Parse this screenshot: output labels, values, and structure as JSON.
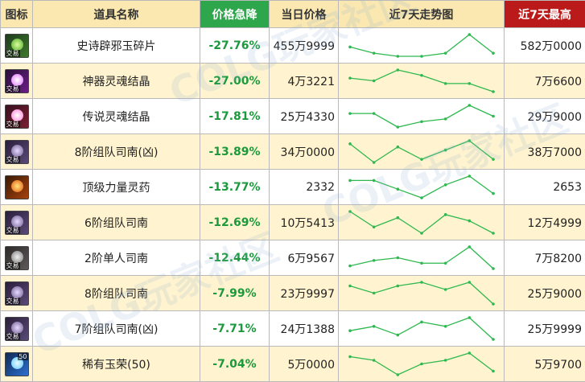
{
  "headers": {
    "icon": "图标",
    "name": "道具名称",
    "drop": "价格急降",
    "price": "当日价格",
    "trend": "近7天走势图",
    "max": "近7天最高"
  },
  "colors": {
    "header_bg": "#fbe8b0",
    "drop_header": "#2ea64b",
    "max_header": "#bb1a1a",
    "alt_row": "#fff4cf",
    "percent_text": "#1a9a3c",
    "trend_line": "#2eb84f"
  },
  "watermark": [
    "COLG玩家社区",
    "COLG玩家社区",
    "COLG玩家社区"
  ],
  "rows": [
    {
      "icon": "jade-fragment-icon",
      "icon_tag": "交易",
      "name": "史诗辟邪玉碎片",
      "drop": "-27.76%",
      "price": "455万9999",
      "max": "582万0000",
      "trend": [
        6,
        4,
        3,
        3,
        4,
        10,
        4
      ]
    },
    {
      "icon": "divine-soul-crystal-icon",
      "icon_tag": "交易",
      "name": "神器灵魂结晶",
      "drop": "-27.00%",
      "price": "4万3221",
      "max": "7万6600",
      "trend": [
        7,
        6,
        10,
        8,
        5,
        5,
        2
      ]
    },
    {
      "icon": "legend-soul-crystal-icon",
      "icon_tag": "交易",
      "name": "传说灵魂结晶",
      "drop": "-17.81%",
      "price": "25万4330",
      "max": "29万9000",
      "trend": [
        7,
        7,
        2,
        4,
        5,
        10,
        6
      ]
    },
    {
      "icon": "team-compass-icon",
      "icon_tag": "交易",
      "name": "8阶组队司南(凶)",
      "drop": "-13.89%",
      "price": "34万0000",
      "max": "38万7000",
      "trend": [
        8,
        2,
        7,
        3,
        6,
        9,
        3
      ]
    },
    {
      "icon": "power-potion-icon",
      "icon_tag": "",
      "name": "顶级力量灵药",
      "drop": "-13.77%",
      "price": "2332",
      "max": "2653",
      "trend": [
        7,
        7,
        5,
        3,
        6,
        8,
        4
      ]
    },
    {
      "icon": "team-compass-icon",
      "icon_tag": "交易",
      "name": "6阶组队司南",
      "drop": "-12.69%",
      "price": "10万5413",
      "max": "12万4999",
      "trend": [
        9,
        4,
        7,
        2,
        8,
        6,
        2
      ]
    },
    {
      "icon": "solo-compass-icon",
      "icon_tag": "交易",
      "name": "2阶单人司南",
      "drop": "-12.44%",
      "price": "6万9567",
      "max": "7万8200",
      "trend": [
        3,
        5,
        6,
        4,
        4,
        10,
        2
      ]
    },
    {
      "icon": "team-compass-icon",
      "icon_tag": "交易",
      "name": "8阶组队司南",
      "drop": "-7.99%",
      "price": "23万9997",
      "max": "25万9000",
      "trend": [
        8,
        6,
        8,
        9,
        7,
        9,
        3
      ]
    },
    {
      "icon": "team-compass-icon",
      "icon_tag": "交易",
      "name": "7阶组队司南(凶)",
      "drop": "-7.71%",
      "price": "24万1388",
      "max": "25万9999",
      "trend": [
        6,
        7,
        5,
        8,
        7,
        9,
        4
      ]
    },
    {
      "icon": "rare-jade-glory-icon",
      "icon_tag": "",
      "icon_num": "50",
      "name": "稀有玉荣(50)",
      "drop": "-7.04%",
      "price": "5万0000",
      "max": "5万9700",
      "trend": [
        7,
        6,
        2,
        5,
        6,
        8,
        3
      ]
    }
  ]
}
